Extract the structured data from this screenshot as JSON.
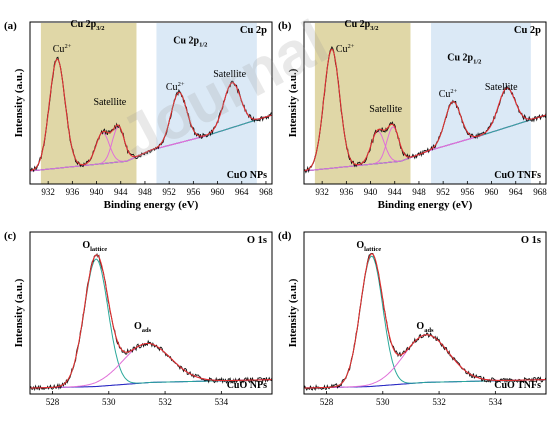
{
  "watermark": "Journal",
  "chart_data": [
    {
      "panel": "(a)",
      "type": "line",
      "core": "Cu 2p",
      "sample": "CuO NPs",
      "xlabel": "Binding energy (eV)",
      "ylabel": "Intensity (a.u.)",
      "xlim": [
        929,
        969
      ],
      "ylim": [
        0,
        1
      ],
      "xticks": [
        932,
        936,
        940,
        944,
        948,
        952,
        956,
        960,
        964,
        968
      ],
      "regions": [
        {
          "name": "Cu 2p3/2",
          "from": 930.8,
          "to": 946.6,
          "color": "#d6c98a"
        },
        {
          "name": "Cu 2p1/2",
          "from": 949.9,
          "to": 966.5,
          "color": "#cfe2f3"
        }
      ],
      "labels": [
        {
          "text": "Cu 2p",
          "sub": "3/2",
          "x": 938.5,
          "y": 1.08
        },
        {
          "text": "Cu 2p",
          "sub": "1/2",
          "x": 955.5,
          "y": 0.96
        },
        {
          "text": "Cu",
          "sup": "2+",
          "x": 934.3,
          "y": 0.9
        },
        {
          "text": "Satellite",
          "x": 942.2,
          "y": 0.52
        },
        {
          "text": "Cu",
          "sup": "2+",
          "x": 953.0,
          "y": 0.63
        },
        {
          "text": "Satellite",
          "x": 962.0,
          "y": 0.72
        }
      ],
      "background": [
        [
          929,
          0.05
        ],
        [
          945,
          0.12
        ],
        [
          949,
          0.2
        ],
        [
          958,
          0.3
        ],
        [
          969,
          0.45
        ]
      ],
      "peaks": [
        {
          "center": 933.5,
          "height": 0.78,
          "width": 1.3,
          "color": "#2aa89a"
        },
        {
          "center": 941.0,
          "height": 0.22,
          "width": 1.1,
          "color": "#e070d8"
        },
        {
          "center": 943.6,
          "height": 0.25,
          "width": 1.0,
          "color": "#e070d8"
        },
        {
          "center": 953.6,
          "height": 0.36,
          "width": 1.3,
          "color": "#2aa89a"
        },
        {
          "center": 962.4,
          "height": 0.32,
          "width": 1.4,
          "color": "#e070d8"
        }
      ]
    },
    {
      "panel": "(b)",
      "type": "line",
      "core": "Cu 2p",
      "sample": "CuO TNFs",
      "xlabel": "Binding energy (eV)",
      "ylabel": "Intensity (a.u.)",
      "xlim": [
        929,
        969
      ],
      "ylim": [
        0,
        1
      ],
      "xticks": [
        932,
        936,
        940,
        944,
        948,
        952,
        956,
        960,
        964,
        968
      ],
      "regions": [
        {
          "name": "Cu 2p3/2",
          "from": 930.8,
          "to": 946.6,
          "color": "#d6c98a"
        },
        {
          "name": "Cu 2p1/2",
          "from": 950.0,
          "to": 966.5,
          "color": "#cfe2f3"
        }
      ],
      "labels": [
        {
          "text": "Cu 2p",
          "sub": "3/2",
          "x": 938.5,
          "y": 1.08
        },
        {
          "text": "Cu 2p",
          "sub": "1/2",
          "x": 955.5,
          "y": 0.84
        },
        {
          "text": "Cu",
          "sup": "2+",
          "x": 935.8,
          "y": 0.9
        },
        {
          "text": "Satellite",
          "x": 942.5,
          "y": 0.47
        },
        {
          "text": "Cu",
          "sup": "2+",
          "x": 952.8,
          "y": 0.58
        },
        {
          "text": "Satellite",
          "x": 961.6,
          "y": 0.63
        }
      ],
      "background": [
        [
          929,
          0.05
        ],
        [
          945,
          0.12
        ],
        [
          950,
          0.2
        ],
        [
          958,
          0.3
        ],
        [
          969,
          0.45
        ]
      ],
      "peaks": [
        {
          "center": 933.6,
          "height": 0.85,
          "width": 1.3,
          "color": "#2aa89a"
        },
        {
          "center": 941.2,
          "height": 0.23,
          "width": 1.1,
          "color": "#e070d8"
        },
        {
          "center": 943.7,
          "height": 0.25,
          "width": 1.0,
          "color": "#e070d8"
        },
        {
          "center": 953.6,
          "height": 0.3,
          "width": 1.3,
          "color": "#2aa89a"
        },
        {
          "center": 962.5,
          "height": 0.28,
          "width": 1.4,
          "color": "#e070d8"
        }
      ]
    },
    {
      "panel": "(c)",
      "type": "line",
      "core": "O 1s",
      "sample": "CuO NPs",
      "xlabel": "",
      "ylabel": "Intensity (a.u.)",
      "xlim": [
        527.2,
        535.8
      ],
      "ylim": [
        0,
        1
      ],
      "xticks": [
        528,
        530,
        532,
        534
      ],
      "regions": [],
      "labels": [
        {
          "text": "O",
          "sub": "lattice",
          "x": 529.5,
          "y": 1.0
        },
        {
          "text": "O",
          "sub": "ads",
          "x": 531.2,
          "y": 0.42
        }
      ],
      "background": [
        [
          527.2,
          0.0
        ],
        [
          529.5,
          0.01
        ],
        [
          531.5,
          0.04
        ],
        [
          535.8,
          0.06
        ]
      ],
      "peaks": [
        {
          "center": 529.55,
          "height": 0.91,
          "width": 0.42,
          "color": "#2aa89a"
        },
        {
          "center": 531.35,
          "height": 0.28,
          "width": 0.85,
          "color": "#e070d8"
        }
      ]
    },
    {
      "panel": "(d)",
      "type": "line",
      "core": "O 1s",
      "sample": "CuO TNFs",
      "xlabel": "",
      "ylabel": "Intensity (a.u.)",
      "xlim": [
        527.2,
        535.8
      ],
      "ylim": [
        0,
        1
      ],
      "xticks": [
        528,
        530,
        532,
        534
      ],
      "regions": [],
      "labels": [
        {
          "text": "O",
          "sub": "lattice",
          "x": 529.5,
          "y": 1.0
        },
        {
          "text": "O",
          "sub": "ads",
          "x": 531.5,
          "y": 0.42
        }
      ],
      "background": [
        [
          527.2,
          0.0
        ],
        [
          529.5,
          0.01
        ],
        [
          531.5,
          0.04
        ],
        [
          535.8,
          0.06
        ]
      ],
      "peaks": [
        {
          "center": 529.6,
          "height": 0.93,
          "width": 0.4,
          "color": "#2aa89a"
        },
        {
          "center": 531.55,
          "height": 0.34,
          "width": 0.8,
          "color": "#e070d8"
        }
      ]
    }
  ]
}
